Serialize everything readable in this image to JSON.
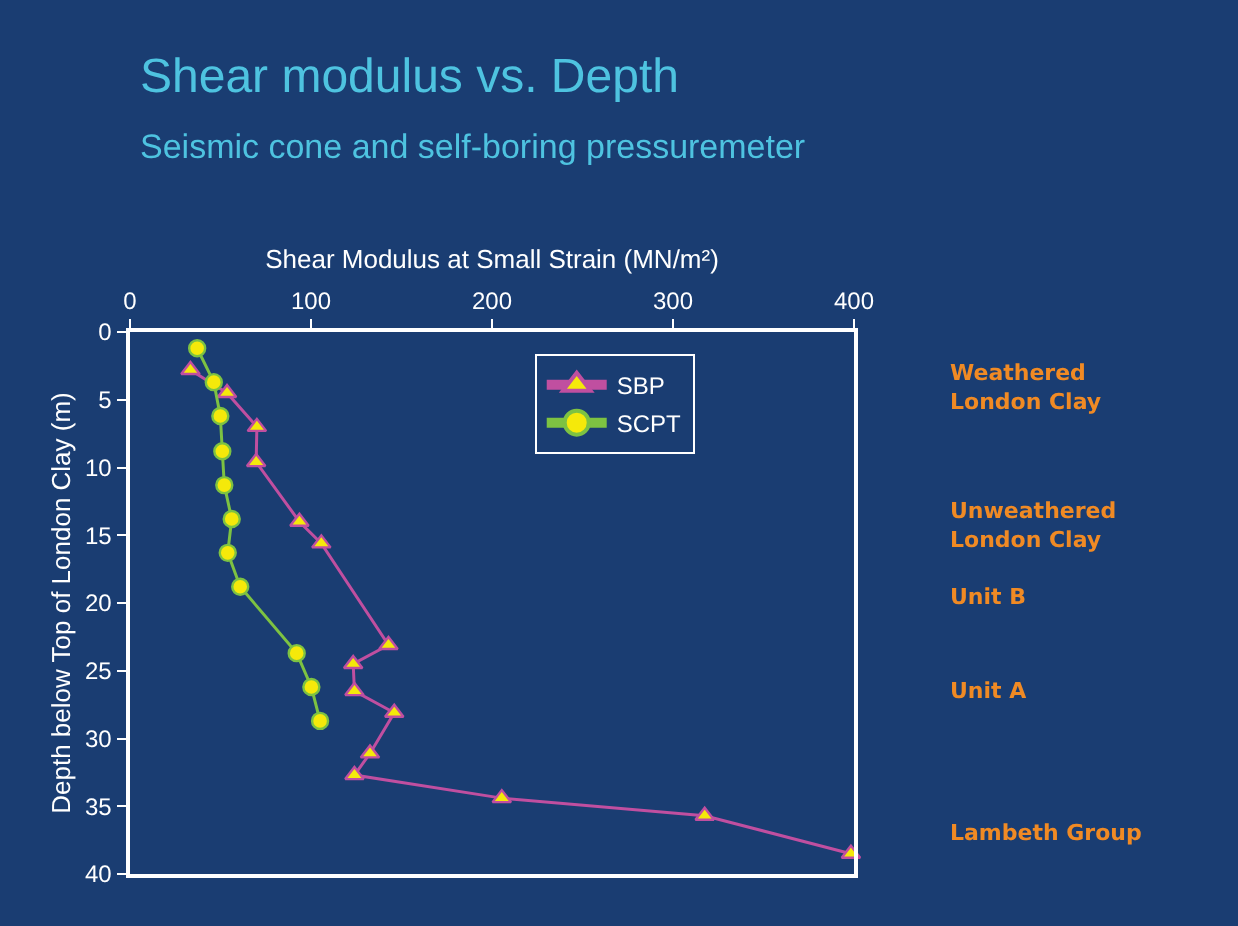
{
  "chart_data": {
    "type": "line",
    "title": "Shear modulus vs. Depth",
    "subtitle": "Seismic cone and self-boring pressuremeter",
    "xlabel": "Shear Modulus at Small Strain (MN/m²)",
    "ylabel": "Depth below Top of London Clay (m)",
    "xlim": [
      0,
      400
    ],
    "xticks": [
      0,
      100,
      200,
      300,
      400
    ],
    "ylim": [
      40,
      0
    ],
    "yticks": [
      0,
      5,
      10,
      15,
      20,
      25,
      30,
      35,
      40
    ],
    "grid": false,
    "legend": "top right",
    "series": [
      {
        "name": "SBP",
        "color": "#c04fa0",
        "marker": "triangle",
        "x": [
          33.4,
          53.6,
          70.1,
          69.7,
          93.6,
          105.7,
          142.8,
          123.3,
          124,
          146,
          132.6,
          124,
          205.4,
          317.5,
          398.3
        ],
        "values": [
          2.8,
          4.5,
          7.0,
          9.6,
          14.0,
          15.6,
          23.1,
          24.5,
          26.5,
          28.1,
          31.1,
          32.7,
          34.4,
          35.7,
          38.5
        ]
      },
      {
        "name": "SCPT",
        "color": "#7dc242",
        "marker": "circle",
        "x": [
          37.1,
          46.3,
          49.9,
          51,
          52.1,
          56.2,
          54,
          60.9,
          92.1,
          100.2,
          105
        ],
        "values": [
          1.2,
          3.7,
          6.2,
          8.8,
          11.3,
          13.8,
          16.3,
          18.8,
          23.7,
          26.2,
          28.7
        ]
      }
    ],
    "annotations": [
      "Weathered\nLondon Clay",
      "Unweathered\nLondon Clay",
      "Unit B",
      "Unit A",
      "Lambeth Group"
    ]
  }
}
